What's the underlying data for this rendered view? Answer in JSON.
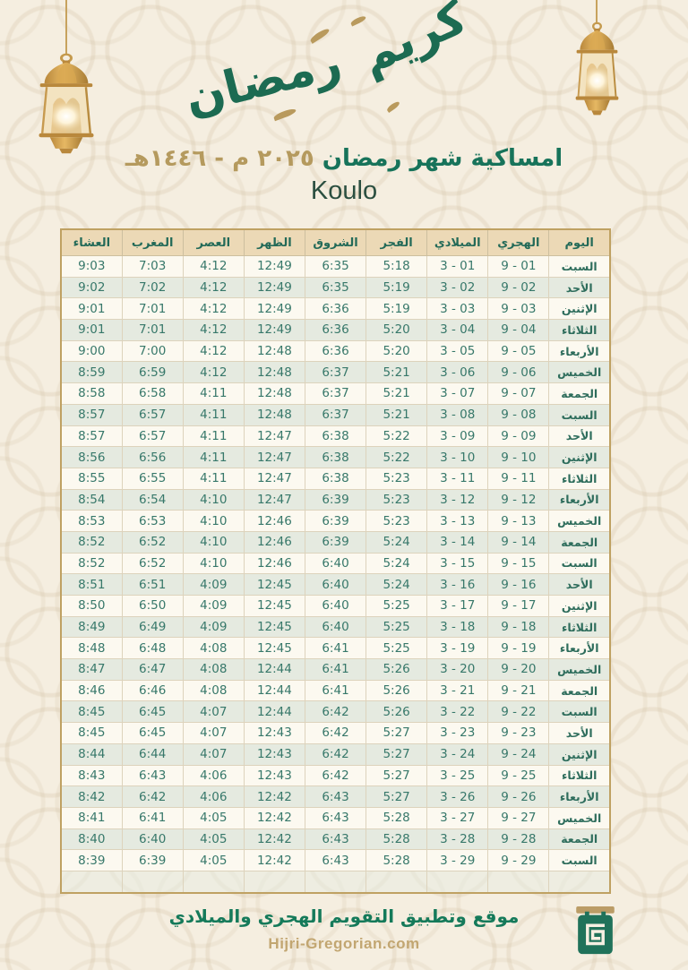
{
  "banner": {
    "calligraphy_word_ramadan": "رمضان",
    "calligraphy_word_kareem": "كريم"
  },
  "header": {
    "title": "امساكية شهر رمضان",
    "year_gregorian": "٢٠٢٥ م",
    "separator": "-",
    "year_hijri": "١٤٤٦هـ",
    "city": "Koulo"
  },
  "table": {
    "columns": [
      {
        "key": "day",
        "label": "اليوم"
      },
      {
        "key": "hijri",
        "label": "الهجري"
      },
      {
        "key": "gregorian",
        "label": "الميلادي"
      },
      {
        "key": "fajr",
        "label": "الفجر"
      },
      {
        "key": "sunrise",
        "label": "الشروق"
      },
      {
        "key": "dhuhr",
        "label": "الظهر"
      },
      {
        "key": "asr",
        "label": "العصر"
      },
      {
        "key": "maghrib",
        "label": "المغرب"
      },
      {
        "key": "isha",
        "label": "العشاء"
      }
    ],
    "rows": [
      {
        "day": "السبت",
        "hijri": "9 - 01",
        "gregorian": "3 - 01",
        "fajr": "5:18",
        "sunrise": "6:35",
        "dhuhr": "12:49",
        "asr": "4:12",
        "maghrib": "7:03",
        "isha": "9:03"
      },
      {
        "day": "الأحد",
        "hijri": "9 - 02",
        "gregorian": "3 - 02",
        "fajr": "5:19",
        "sunrise": "6:35",
        "dhuhr": "12:49",
        "asr": "4:12",
        "maghrib": "7:02",
        "isha": "9:02"
      },
      {
        "day": "الإثنين",
        "hijri": "9 - 03",
        "gregorian": "3 - 03",
        "fajr": "5:19",
        "sunrise": "6:36",
        "dhuhr": "12:49",
        "asr": "4:12",
        "maghrib": "7:01",
        "isha": "9:01"
      },
      {
        "day": "الثلاثاء",
        "hijri": "9 - 04",
        "gregorian": "3 - 04",
        "fajr": "5:20",
        "sunrise": "6:36",
        "dhuhr": "12:49",
        "asr": "4:12",
        "maghrib": "7:01",
        "isha": "9:01"
      },
      {
        "day": "الأربعاء",
        "hijri": "9 - 05",
        "gregorian": "3 - 05",
        "fajr": "5:20",
        "sunrise": "6:36",
        "dhuhr": "12:48",
        "asr": "4:12",
        "maghrib": "7:00",
        "isha": "9:00"
      },
      {
        "day": "الخميس",
        "hijri": "9 - 06",
        "gregorian": "3 - 06",
        "fajr": "5:21",
        "sunrise": "6:37",
        "dhuhr": "12:48",
        "asr": "4:12",
        "maghrib": "6:59",
        "isha": "8:59"
      },
      {
        "day": "الجمعة",
        "hijri": "9 - 07",
        "gregorian": "3 - 07",
        "fajr": "5:21",
        "sunrise": "6:37",
        "dhuhr": "12:48",
        "asr": "4:11",
        "maghrib": "6:58",
        "isha": "8:58"
      },
      {
        "day": "السبت",
        "hijri": "9 - 08",
        "gregorian": "3 - 08",
        "fajr": "5:21",
        "sunrise": "6:37",
        "dhuhr": "12:48",
        "asr": "4:11",
        "maghrib": "6:57",
        "isha": "8:57"
      },
      {
        "day": "الأحد",
        "hijri": "9 - 09",
        "gregorian": "3 - 09",
        "fajr": "5:22",
        "sunrise": "6:38",
        "dhuhr": "12:47",
        "asr": "4:11",
        "maghrib": "6:57",
        "isha": "8:57"
      },
      {
        "day": "الإثنين",
        "hijri": "9 - 10",
        "gregorian": "3 - 10",
        "fajr": "5:22",
        "sunrise": "6:38",
        "dhuhr": "12:47",
        "asr": "4:11",
        "maghrib": "6:56",
        "isha": "8:56"
      },
      {
        "day": "الثلاثاء",
        "hijri": "9 - 11",
        "gregorian": "3 - 11",
        "fajr": "5:23",
        "sunrise": "6:38",
        "dhuhr": "12:47",
        "asr": "4:11",
        "maghrib": "6:55",
        "isha": "8:55"
      },
      {
        "day": "الأربعاء",
        "hijri": "9 - 12",
        "gregorian": "3 - 12",
        "fajr": "5:23",
        "sunrise": "6:39",
        "dhuhr": "12:47",
        "asr": "4:10",
        "maghrib": "6:54",
        "isha": "8:54"
      },
      {
        "day": "الخميس",
        "hijri": "9 - 13",
        "gregorian": "3 - 13",
        "fajr": "5:23",
        "sunrise": "6:39",
        "dhuhr": "12:46",
        "asr": "4:10",
        "maghrib": "6:53",
        "isha": "8:53"
      },
      {
        "day": "الجمعة",
        "hijri": "9 - 14",
        "gregorian": "3 - 14",
        "fajr": "5:24",
        "sunrise": "6:39",
        "dhuhr": "12:46",
        "asr": "4:10",
        "maghrib": "6:52",
        "isha": "8:52"
      },
      {
        "day": "السبت",
        "hijri": "9 - 15",
        "gregorian": "3 - 15",
        "fajr": "5:24",
        "sunrise": "6:40",
        "dhuhr": "12:46",
        "asr": "4:10",
        "maghrib": "6:52",
        "isha": "8:52"
      },
      {
        "day": "الأحد",
        "hijri": "9 - 16",
        "gregorian": "3 - 16",
        "fajr": "5:24",
        "sunrise": "6:40",
        "dhuhr": "12:45",
        "asr": "4:09",
        "maghrib": "6:51",
        "isha": "8:51"
      },
      {
        "day": "الإثنين",
        "hijri": "9 - 17",
        "gregorian": "3 - 17",
        "fajr": "5:25",
        "sunrise": "6:40",
        "dhuhr": "12:45",
        "asr": "4:09",
        "maghrib": "6:50",
        "isha": "8:50"
      },
      {
        "day": "الثلاثاء",
        "hijri": "9 - 18",
        "gregorian": "3 - 18",
        "fajr": "5:25",
        "sunrise": "6:40",
        "dhuhr": "12:45",
        "asr": "4:09",
        "maghrib": "6:49",
        "isha": "8:49"
      },
      {
        "day": "الأربعاء",
        "hijri": "9 - 19",
        "gregorian": "3 - 19",
        "fajr": "5:25",
        "sunrise": "6:41",
        "dhuhr": "12:45",
        "asr": "4:08",
        "maghrib": "6:48",
        "isha": "8:48"
      },
      {
        "day": "الخميس",
        "hijri": "9 - 20",
        "gregorian": "3 - 20",
        "fajr": "5:26",
        "sunrise": "6:41",
        "dhuhr": "12:44",
        "asr": "4:08",
        "maghrib": "6:47",
        "isha": "8:47"
      },
      {
        "day": "الجمعة",
        "hijri": "9 - 21",
        "gregorian": "3 - 21",
        "fajr": "5:26",
        "sunrise": "6:41",
        "dhuhr": "12:44",
        "asr": "4:08",
        "maghrib": "6:46",
        "isha": "8:46"
      },
      {
        "day": "السبت",
        "hijri": "9 - 22",
        "gregorian": "3 - 22",
        "fajr": "5:26",
        "sunrise": "6:42",
        "dhuhr": "12:44",
        "asr": "4:07",
        "maghrib": "6:45",
        "isha": "8:45"
      },
      {
        "day": "الأحد",
        "hijri": "9 - 23",
        "gregorian": "3 - 23",
        "fajr": "5:27",
        "sunrise": "6:42",
        "dhuhr": "12:43",
        "asr": "4:07",
        "maghrib": "6:45",
        "isha": "8:45"
      },
      {
        "day": "الإثنين",
        "hijri": "9 - 24",
        "gregorian": "3 - 24",
        "fajr": "5:27",
        "sunrise": "6:42",
        "dhuhr": "12:43",
        "asr": "4:07",
        "maghrib": "6:44",
        "isha": "8:44"
      },
      {
        "day": "الثلاثاء",
        "hijri": "9 - 25",
        "gregorian": "3 - 25",
        "fajr": "5:27",
        "sunrise": "6:42",
        "dhuhr": "12:43",
        "asr": "4:06",
        "maghrib": "6:43",
        "isha": "8:43"
      },
      {
        "day": "الأربعاء",
        "hijri": "9 - 26",
        "gregorian": "3 - 26",
        "fajr": "5:27",
        "sunrise": "6:43",
        "dhuhr": "12:42",
        "asr": "4:06",
        "maghrib": "6:42",
        "isha": "8:42"
      },
      {
        "day": "الخميس",
        "hijri": "9 - 27",
        "gregorian": "3 - 27",
        "fajr": "5:28",
        "sunrise": "6:43",
        "dhuhr": "12:42",
        "asr": "4:05",
        "maghrib": "6:41",
        "isha": "8:41"
      },
      {
        "day": "الجمعة",
        "hijri": "9 - 28",
        "gregorian": "3 - 28",
        "fajr": "5:28",
        "sunrise": "6:43",
        "dhuhr": "12:42",
        "asr": "4:05",
        "maghrib": "6:40",
        "isha": "8:40"
      },
      {
        "day": "السبت",
        "hijri": "9 - 29",
        "gregorian": "3 - 29",
        "fajr": "5:28",
        "sunrise": "6:43",
        "dhuhr": "12:42",
        "asr": "4:05",
        "maghrib": "6:39",
        "isha": "8:39"
      }
    ],
    "has_trailing_empty_row": true
  },
  "footer": {
    "tagline": "موقع وتطبيق التقويم الهجري والميلادي",
    "website": "Hijri-Gregorian.com"
  },
  "icons": {
    "left_lantern": "gold-lantern-icon",
    "right_lantern": "gold-lantern-icon",
    "logo": "hijri-gregorian-calendar-logo"
  },
  "colors": {
    "background": "#f5eee0",
    "accent_green": "#17735a",
    "accent_gold": "#b59a5e",
    "table_border_gold": "#bfa162",
    "table_header_bg": "#ecd9b6",
    "row_odd": "#fcf9f0",
    "row_even": "#e5eae0",
    "cell_text": "#37786a",
    "footer_green": "#157a5a",
    "footer_gold": "#c2a671"
  }
}
